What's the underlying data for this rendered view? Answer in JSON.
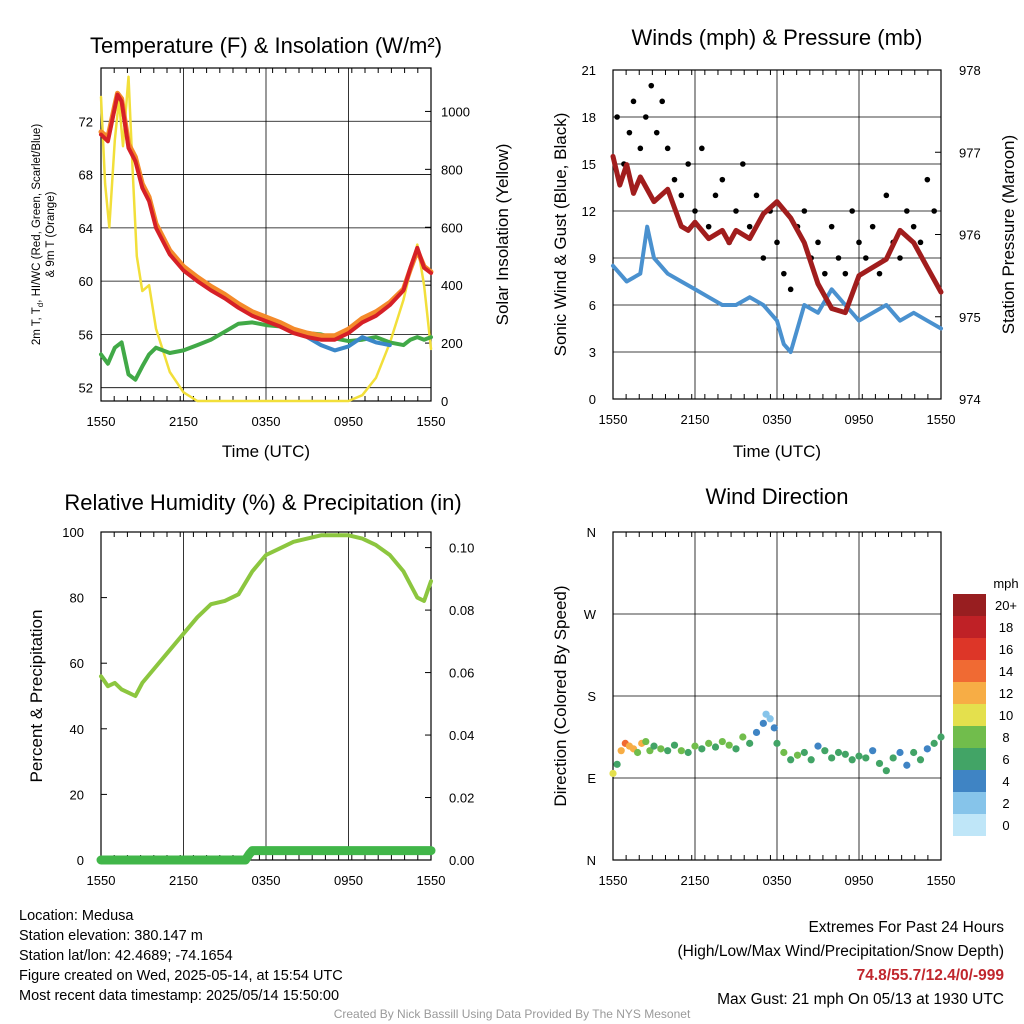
{
  "chart_data": [
    {
      "type": "line",
      "title": "Temperature (F) & Insolation (W/m²)",
      "xlabel": "Time (UTC)",
      "ylabel": "2m T, Td, HI/WC (Red, Green, Scarlet/Blue) & 9m T (Orange)",
      "ylabel_lines": [
        "2m T, T",
        "d",
        ", HI/WC (Red, Green, Scarlet/Blue)",
        "& 9m T (Orange)"
      ],
      "y2label": "Solar Insolation (Yellow)",
      "xticks": [
        "1550",
        "2150",
        "0350",
        "0950",
        "1550"
      ],
      "yticks": [
        "52",
        "56",
        "60",
        "64",
        "68",
        "72"
      ],
      "y2ticks": [
        "0",
        "200",
        "400",
        "600",
        "800",
        "1000"
      ],
      "x_hours": [
        0,
        24
      ],
      "ylim": [
        51,
        76
      ],
      "y2lim": [
        0,
        1150
      ],
      "series": [
        {
          "name": "2m T",
          "color": "#d62027",
          "x": [
            0,
            0.5,
            1,
            1.2,
            1.5,
            2,
            2.5,
            3,
            3.5,
            4,
            5,
            6,
            7,
            8,
            9,
            10,
            11,
            12,
            13,
            14,
            15,
            16,
            17,
            18,
            19,
            20,
            21,
            22,
            22.5,
            23,
            23.5,
            24
          ],
          "y": [
            71,
            70.5,
            73,
            74,
            73.5,
            70,
            69,
            67,
            66,
            64,
            62,
            60.8,
            60,
            59.3,
            58.7,
            58,
            57.4,
            57,
            56.6,
            56.1,
            55.8,
            55.6,
            55.6,
            56.1,
            56.9,
            57.4,
            58.2,
            59.3,
            61,
            62.5,
            61,
            60.6
          ]
        },
        {
          "name": "9m T",
          "color": "#f48a2a",
          "x": [
            0,
            0.5,
            1,
            1.2,
            1.5,
            2,
            2.5,
            3,
            3.5,
            4,
            5,
            6,
            7,
            8,
            9,
            10,
            11,
            12,
            13,
            14,
            15,
            16,
            17,
            18,
            19,
            20,
            21,
            22,
            22.5,
            23,
            23.5,
            24
          ],
          "y": [
            71.2,
            70.8,
            73.2,
            74.1,
            73.7,
            70.3,
            69.3,
            67.3,
            66.3,
            64.3,
            62.3,
            61.1,
            60.3,
            59.6,
            59,
            58.3,
            57.7,
            57.3,
            56.9,
            56.4,
            56.1,
            55.9,
            55.9,
            56.4,
            57.2,
            57.7,
            58.4,
            59.4,
            60.9,
            62.3,
            61.1,
            60.7
          ]
        },
        {
          "name": "Td",
          "color": "#41a947",
          "x": [
            0,
            0.5,
            1,
            1.5,
            2,
            2.5,
            3,
            3.5,
            4,
            5,
            6,
            7,
            8,
            9,
            10,
            11,
            12,
            13,
            14,
            15,
            16,
            17,
            18,
            19,
            20,
            21,
            22,
            22.5,
            23,
            23.5,
            24
          ],
          "y": [
            54.5,
            53.8,
            55,
            55.4,
            53,
            52.6,
            53.6,
            54.5,
            55,
            54.6,
            54.8,
            55.2,
            55.6,
            56.2,
            56.8,
            56.9,
            56.7,
            56.6,
            56.3,
            56.1,
            56,
            55.7,
            55.5,
            55.6,
            55.8,
            55.4,
            55.2,
            55.6,
            55.8,
            55.6,
            55.8
          ]
        },
        {
          "name": "HI/WC",
          "color": "#3a87c8",
          "x": [
            14,
            15,
            16,
            17,
            18,
            19,
            20,
            21
          ],
          "y": [
            56.3,
            55.8,
            55.2,
            54.8,
            55.1,
            55.8,
            55.4,
            55.2
          ]
        },
        {
          "name": "Solar Insolation",
          "color": "#f2df3a",
          "x": [
            0,
            0.3,
            0.6,
            1,
            1.3,
            1.6,
            2,
            2.3,
            2.6,
            3,
            3.5,
            4,
            5,
            6,
            7,
            8,
            10,
            12,
            14,
            16,
            18,
            19,
            20,
            21,
            22,
            22.5,
            23,
            23.5,
            24
          ],
          "y": [
            1050,
            750,
            600,
            900,
            1040,
            880,
            1120,
            800,
            500,
            380,
            400,
            250,
            100,
            30,
            0,
            0,
            0,
            0,
            0,
            0,
            0,
            20,
            80,
            200,
            350,
            450,
            540,
            400,
            180
          ]
        }
      ]
    },
    {
      "type": "scatter",
      "title": "Winds (mph) & Pressure (mb)",
      "xlabel": "Time (UTC)",
      "ylabel": "Sonic Wind & Gust (Blue, Black)",
      "y2label": "Station Pressure (Maroon)",
      "xticks": [
        "1550",
        "2150",
        "0350",
        "0950",
        "1550"
      ],
      "yticks": [
        "0",
        "3",
        "6",
        "9",
        "12",
        "15",
        "18",
        "21"
      ],
      "y2ticks": [
        "974",
        "975",
        "976",
        "977",
        "978"
      ],
      "ylim": [
        0,
        21
      ],
      "y2lim": [
        974,
        978
      ],
      "series": [
        {
          "name": "Sonic Wind",
          "color": "#4a91cf",
          "type": "line",
          "x": [
            0,
            1,
            2,
            2.5,
            3,
            4,
            5,
            6,
            7,
            8,
            9,
            10,
            11,
            12,
            12.5,
            13,
            14,
            15,
            16,
            17,
            18,
            19,
            20,
            21,
            22,
            23,
            24
          ],
          "y": [
            8.5,
            7.5,
            8,
            11,
            9,
            8,
            7.5,
            7,
            6.5,
            6,
            6,
            6.5,
            6,
            5,
            3.5,
            3,
            6,
            5.5,
            7,
            6,
            5,
            5.5,
            6,
            5,
            5.5,
            5,
            4.5
          ]
        },
        {
          "name": "Sonic Gust",
          "color": "#000000",
          "type": "scatter",
          "x": [
            0.3,
            0.8,
            1.2,
            1.5,
            2,
            2.4,
            2.8,
            3.2,
            3.6,
            4,
            4.5,
            5,
            5.5,
            6,
            6.5,
            7,
            7.5,
            8,
            8.5,
            9,
            9.5,
            10,
            10.5,
            11,
            11.5,
            12,
            12.5,
            13,
            13.5,
            14,
            14.5,
            15,
            15.5,
            16,
            16.5,
            17,
            17.5,
            18,
            18.5,
            19,
            19.5,
            20,
            20.5,
            21,
            21.5,
            22,
            22.5,
            23,
            23.5
          ],
          "y": [
            18,
            15,
            17,
            19,
            16,
            18,
            20,
            17,
            19,
            16,
            14,
            13,
            15,
            12,
            16,
            11,
            13,
            14,
            10,
            12,
            15,
            11,
            13,
            9,
            12,
            10,
            8,
            7,
            11,
            12,
            9,
            10,
            8,
            11,
            9,
            8,
            12,
            10,
            9,
            11,
            8,
            13,
            10,
            9,
            12,
            11,
            10,
            14,
            12
          ]
        },
        {
          "name": "Station Pressure",
          "color": "#a11d1d",
          "type": "line",
          "x": [
            0,
            0.5,
            1,
            1.5,
            2,
            3,
            4,
            5,
            5.5,
            6,
            7,
            8,
            8.5,
            9,
            10,
            11,
            12,
            13,
            14,
            15,
            16,
            17,
            18,
            19,
            20,
            21,
            22,
            23,
            24
          ],
          "y": [
            976.95,
            976.6,
            976.85,
            976.5,
            976.7,
            976.4,
            976.55,
            976.1,
            976.05,
            976.15,
            975.95,
            976.05,
            975.9,
            976.05,
            975.95,
            976.25,
            976.4,
            976.2,
            975.9,
            975.4,
            975.1,
            975.05,
            975.5,
            975.6,
            975.7,
            976.05,
            975.9,
            975.6,
            975.3
          ]
        }
      ]
    },
    {
      "type": "line",
      "title": "Relative Humidity (%) & Precipitation (in)",
      "ylabel": "Percent & Precipitation",
      "xticks": [
        "1550",
        "2150",
        "0350",
        "0950",
        "1550"
      ],
      "yticks": [
        "0",
        "20",
        "40",
        "60",
        "80",
        "100"
      ],
      "y2ticks": [
        "0.00",
        "0.02",
        "0.04",
        "0.06",
        "0.08",
        "0.10"
      ],
      "ylim": [
        0,
        100
      ],
      "y2lim": [
        0,
        0.105
      ],
      "series": [
        {
          "name": "Relative Humidity",
          "color": "#8cc63f",
          "x": [
            0,
            0.5,
            1,
            1.5,
            2,
            2.5,
            3,
            4,
            5,
            6,
            7,
            8,
            9,
            10,
            11,
            12,
            13,
            14,
            15,
            16,
            17,
            18,
            19,
            20,
            21,
            22,
            22.5,
            23,
            23.5,
            24
          ],
          "y": [
            56,
            53,
            54,
            52,
            51,
            50,
            54,
            59,
            64,
            69,
            74,
            78,
            79,
            81,
            88,
            93,
            95,
            97,
            98,
            99,
            99,
            99,
            98,
            96,
            93,
            88,
            84,
            80,
            79,
            85
          ]
        },
        {
          "name": "Precipitation",
          "color": "#41b649",
          "x": [
            0,
            10.5,
            10.8,
            11,
            24
          ],
          "y": [
            0,
            0,
            0.002,
            0.003,
            0.003
          ]
        }
      ]
    },
    {
      "type": "scatter",
      "title": "Wind Direction",
      "ylabel": "Direction (Colored By Speed)",
      "xticks": [
        "1550",
        "2150",
        "0350",
        "0950",
        "1550"
      ],
      "yticks": [
        "N",
        "E",
        "S",
        "W",
        "N"
      ],
      "ylim": [
        0,
        360
      ],
      "colorbar_title": "mph",
      "colorbar_labels": [
        "0",
        "2",
        "4",
        "6",
        "8",
        "10",
        "12",
        "14",
        "16",
        "18",
        "20+"
      ],
      "colorbar_colors": [
        "#bfe6f8",
        "#86c4ea",
        "#3f84c4",
        "#42a466",
        "#71bd4c",
        "#e4e04d",
        "#f7ad45",
        "#f06a33",
        "#dd3628",
        "#bf2126",
        "#981e20"
      ],
      "series": [
        {
          "name": "Wind Direction",
          "x": [
            0,
            0.3,
            0.6,
            0.9,
            1.2,
            1.5,
            1.8,
            2.1,
            2.4,
            2.7,
            3,
            3.5,
            4,
            4.5,
            5,
            5.5,
            6,
            6.5,
            7,
            7.5,
            8,
            8.5,
            9,
            9.5,
            10,
            10.5,
            11,
            11.2,
            11.5,
            11.8,
            12,
            12.5,
            13,
            13.5,
            14,
            14.5,
            15,
            15.5,
            16,
            16.5,
            17,
            17.5,
            18,
            18.5,
            19,
            19.5,
            20,
            20.5,
            21,
            21.5,
            22,
            22.5,
            23,
            23.5,
            24
          ],
          "y": [
            95,
            105,
            120,
            128,
            125,
            122,
            118,
            128,
            130,
            120,
            125,
            122,
            120,
            126,
            120,
            118,
            125,
            122,
            128,
            124,
            130,
            126,
            122,
            135,
            128,
            140,
            150,
            160,
            155,
            145,
            128,
            118,
            110,
            115,
            118,
            110,
            125,
            120,
            112,
            118,
            116,
            110,
            114,
            112,
            120,
            106,
            98,
            112,
            118,
            104,
            118,
            110,
            122,
            128,
            135
          ],
          "speed": [
            10,
            6,
            12,
            13,
            12,
            11,
            8,
            12,
            7,
            8,
            6,
            7,
            6,
            6,
            7,
            6,
            7,
            6,
            7,
            6,
            7,
            7,
            6,
            7,
            5,
            4,
            3,
            2,
            2,
            4,
            6,
            7,
            6,
            7,
            5,
            6,
            4,
            5,
            6,
            5,
            5,
            6,
            5,
            6,
            4,
            5,
            6,
            5,
            3,
            4,
            5,
            6,
            4,
            6,
            5
          ]
        }
      ]
    }
  ],
  "info": {
    "location": "Location: Medusa",
    "elevation": "Station elevation: 380.147 m",
    "latlon": "Station lat/lon: 42.4689; -74.1654",
    "created": "Figure created on Wed, 2025-05-14, at 15:54 UTC",
    "recent": "Most recent data timestamp: 2025/05/14 15:50:00"
  },
  "extremes": {
    "title": "Extremes For Past 24 Hours",
    "subtitle": "(High/Low/Max Wind/Precipitation/Snow Depth)",
    "values": "74.8/55.7/12.4/0/-999",
    "gust": "Max Gust: 21 mph On 05/13 at 1930 UTC"
  },
  "credit": "Created By Nick Bassill Using Data Provided By The NYS Mesonet"
}
